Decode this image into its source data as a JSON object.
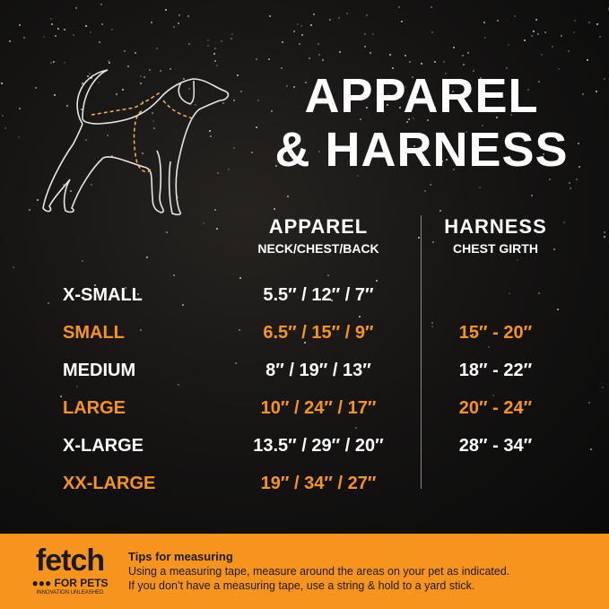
{
  "title_line1": "APPAREL",
  "title_line2": "& HARNESS",
  "columns": {
    "apparel": {
      "heading": "APPAREL",
      "sub": "NECK/CHEST/BACK"
    },
    "harness": {
      "heading": "HARNESS",
      "sub": "CHEST GIRTH"
    }
  },
  "rows": [
    {
      "size": "X-SMALL",
      "apparel": "5.5″ / 12″ / 7″",
      "harness": "",
      "highlight": false
    },
    {
      "size": "SMALL",
      "apparel": "6.5″ / 15″ / 9″",
      "harness": "15″ -  20″",
      "highlight": true
    },
    {
      "size": "MEDIUM",
      "apparel": "8″ / 19″ / 13″",
      "harness": "18″ -  22″",
      "highlight": false
    },
    {
      "size": "LARGE",
      "apparel": "10″ / 24″ / 17″",
      "harness": "20″ -  24″",
      "highlight": true
    },
    {
      "size": "X-LARGE",
      "apparel": "13.5″ / 29″ / 20″",
      "harness": "28″ -  34″",
      "highlight": false
    },
    {
      "size": "XX-LARGE",
      "apparel": "19″ / 34″ / 27″",
      "harness": "",
      "highlight": true
    }
  ],
  "footer": {
    "logo": {
      "name": "fetch",
      "sub": "FOR PETS",
      "tagline": "INNOVATION UNLEASHED"
    },
    "tips_title": "Tips for measuring",
    "tips_line1": "Using a measuring tape, measure around the areas on your pet as indicated.",
    "tips_line2": "If you don’t have a measuring tape, use a string & hold to a yard stick."
  },
  "colors": {
    "accent": "#f7941d",
    "background": "#141312",
    "text": "#ffffff"
  },
  "icons": [
    "dog-outline-measurement-icon"
  ]
}
